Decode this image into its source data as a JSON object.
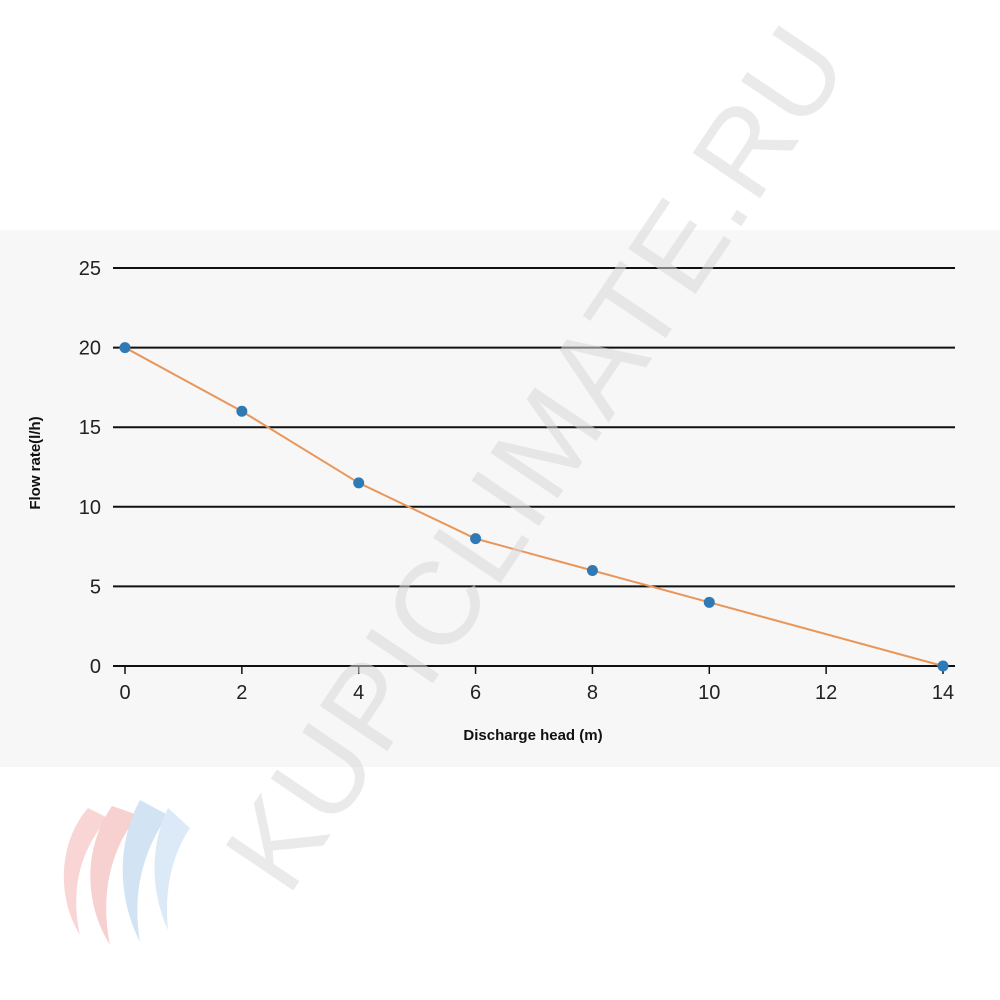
{
  "chart_data": {
    "type": "line",
    "xlabel": "Discharge head (m)",
    "ylabel": "Flow rate(l/h)",
    "xlim": [
      0,
      14
    ],
    "ylim": [
      0,
      25
    ],
    "x_ticks": [
      0,
      2,
      4,
      6,
      8,
      10,
      12,
      14
    ],
    "y_ticks": [
      0,
      5,
      10,
      15,
      20,
      25
    ],
    "grid": "horizontal",
    "series": [
      {
        "x": [
          0,
          2,
          4,
          6,
          8,
          10,
          14
        ],
        "values": [
          20,
          16,
          11.5,
          8,
          6,
          4,
          0
        ],
        "line_color": "#e8965a",
        "marker_color": "#2f79b5"
      }
    ]
  },
  "watermark": {
    "text": "KUPICLIMATE.RU"
  },
  "colors": {
    "panel_background": "#f7f7f7",
    "gridline": "#111111",
    "watermark": "#d8d8d8"
  }
}
